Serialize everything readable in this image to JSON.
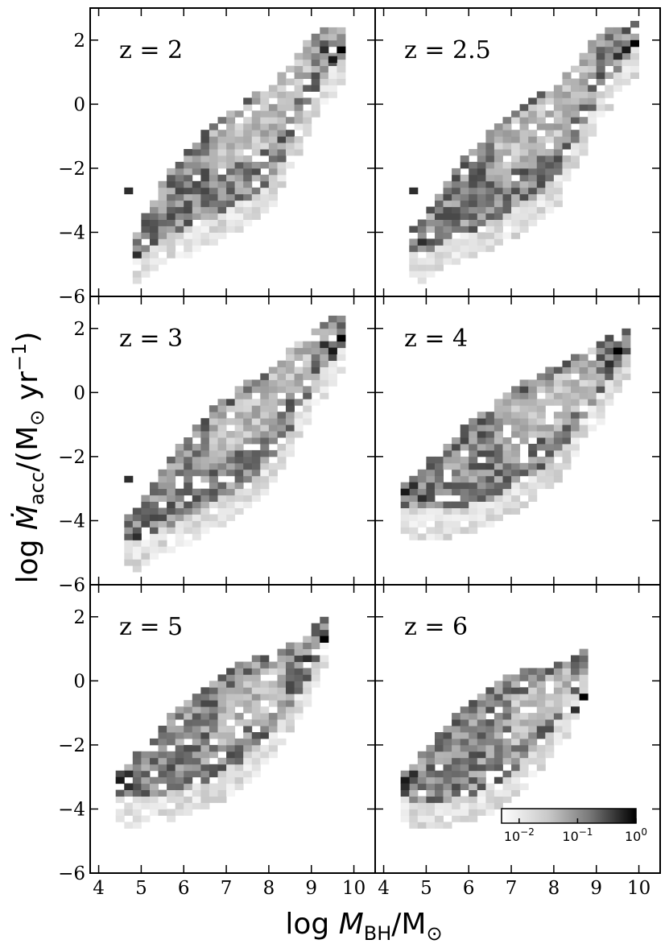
{
  "chart_data": {
    "type": "heatmap",
    "xlabel": "log M_BH/M_⊙",
    "ylabel": "log Ṁ_acc/(M_⊙ yr^-1)",
    "xlim": [
      3.8,
      10.5
    ],
    "ylim": [
      -6,
      3
    ],
    "x_ticks": [
      "4",
      "5",
      "6",
      "7",
      "8",
      "9",
      "10"
    ],
    "y_ticks": [
      "−6",
      "−4",
      "−2",
      "0",
      "2"
    ],
    "bin_size": {
      "x": 0.2,
      "y": 0.2
    },
    "colorbar": {
      "scale": "log",
      "range": [
        0.005,
        1.0
      ],
      "tick_values": [
        0.01,
        0.1,
        1
      ],
      "tick_labels": [
        {
          "base": "10",
          "exp": "−2"
        },
        {
          "base": "10",
          "exp": "−1"
        },
        {
          "base": "10",
          "exp": "0"
        }
      ],
      "placement": "lower-right of bottom-right panel"
    },
    "panels": [
      {
        "label": "z = 2",
        "x_range": [
          4.8,
          9.7
        ],
        "ridge": [
          [
            4.8,
            -4.8
          ],
          [
            5.5,
            -3.6
          ],
          [
            6.5,
            -2.6
          ],
          [
            8.0,
            -1.3
          ],
          [
            9.0,
            0.9
          ],
          [
            9.7,
            1.6
          ]
        ],
        "upper_spread": 0.4,
        "lower_spread": 0.35,
        "light_upper_band": [
          [
            6.5,
            8.8
          ],
          1.3,
          0.6
        ],
        "dark_pixels": [
          [
            9.6,
            1.6
          ],
          [
            9.4,
            1.3
          ],
          [
            4.8,
            -4.8
          ],
          [
            9.2,
            1.6
          ],
          [
            4.6,
            -2.8
          ]
        ]
      },
      {
        "label": "z = 2.5",
        "x_range": [
          4.6,
          9.8
        ],
        "ridge": [
          [
            4.8,
            -4.6
          ],
          [
            5.5,
            -3.6
          ],
          [
            6.5,
            -2.6
          ],
          [
            8.0,
            -1.3
          ],
          [
            9.0,
            0.9
          ],
          [
            9.8,
            1.7
          ]
        ],
        "upper_spread": 0.4,
        "lower_spread": 0.35,
        "light_upper_band": [
          [
            6.5,
            8.8
          ],
          1.3,
          0.6
        ],
        "dark_pixels": [
          [
            9.8,
            1.8
          ],
          [
            9.6,
            1.6
          ],
          [
            4.6,
            -2.8
          ],
          [
            9.4,
            1.4
          ],
          [
            4.8,
            -4.4
          ]
        ]
      },
      {
        "label": "z = 3",
        "x_range": [
          4.6,
          9.7
        ],
        "ridge": [
          [
            4.8,
            -4.6
          ],
          [
            5.5,
            -3.6
          ],
          [
            6.5,
            -2.5
          ],
          [
            8.0,
            -1.1
          ],
          [
            9.0,
            0.8
          ],
          [
            9.7,
            1.6
          ]
        ],
        "upper_spread": 0.4,
        "lower_spread": 0.35,
        "light_upper_band": [
          [
            6.5,
            8.8
          ],
          1.2,
          0.55
        ],
        "dark_pixels": [
          [
            9.6,
            1.6
          ],
          [
            9.4,
            1.2
          ],
          [
            4.6,
            -2.8
          ],
          [
            4.8,
            -4.6
          ],
          [
            9.2,
            1.4
          ]
        ]
      },
      {
        "label": "z = 4",
        "x_range": [
          4.4,
          9.6
        ],
        "ridge": [
          [
            4.6,
            -3.6
          ],
          [
            5.5,
            -3.0
          ],
          [
            6.5,
            -2.2
          ],
          [
            8.0,
            -1.0
          ],
          [
            9.0,
            0.3
          ],
          [
            9.6,
            1.2
          ]
        ],
        "upper_spread": 0.4,
        "lower_spread": 0.35,
        "light_upper_band": [
          [
            6.8,
            8.8
          ],
          1.0,
          0.35
        ],
        "dark_pixels": [
          [
            9.4,
            1.2
          ],
          [
            4.4,
            -3.2
          ],
          [
            4.6,
            -3.0
          ],
          [
            9.2,
            0.8
          ],
          [
            4.8,
            -3.4
          ]
        ]
      },
      {
        "label": "z = 5",
        "x_range": [
          4.4,
          9.2
        ],
        "ridge": [
          [
            4.6,
            -3.6
          ],
          [
            5.5,
            -2.8
          ],
          [
            6.5,
            -2.0
          ],
          [
            8.0,
            -0.8
          ],
          [
            8.8,
            0.2
          ],
          [
            9.2,
            1.2
          ]
        ],
        "upper_spread": 0.4,
        "lower_spread": 0.35,
        "light_upper_band": [
          [
            6.8,
            8.4
          ],
          0.8,
          0.3
        ],
        "dark_pixels": [
          [
            9.2,
            1.2
          ],
          [
            4.4,
            -3.2
          ],
          [
            4.6,
            -3.0
          ],
          [
            4.6,
            -3.4
          ],
          [
            8.8,
            0.6
          ]
        ]
      },
      {
        "label": "z = 6",
        "x_range": [
          4.4,
          8.6
        ],
        "ridge": [
          [
            4.6,
            -3.6
          ],
          [
            5.5,
            -2.9
          ],
          [
            6.5,
            -2.1
          ],
          [
            7.5,
            -1.3
          ],
          [
            8.2,
            -0.6
          ],
          [
            8.6,
            0.2
          ]
        ],
        "upper_spread": 0.4,
        "lower_spread": 0.35,
        "light_upper_band": [
          [
            7.0,
            8.3
          ],
          0.7,
          0.25
        ],
        "dark_pixels": [
          [
            8.6,
            -0.6
          ],
          [
            4.4,
            -3.2
          ],
          [
            4.4,
            -3.4
          ],
          [
            8.4,
            -1.0
          ],
          [
            4.6,
            -3.0
          ]
        ]
      }
    ]
  }
}
